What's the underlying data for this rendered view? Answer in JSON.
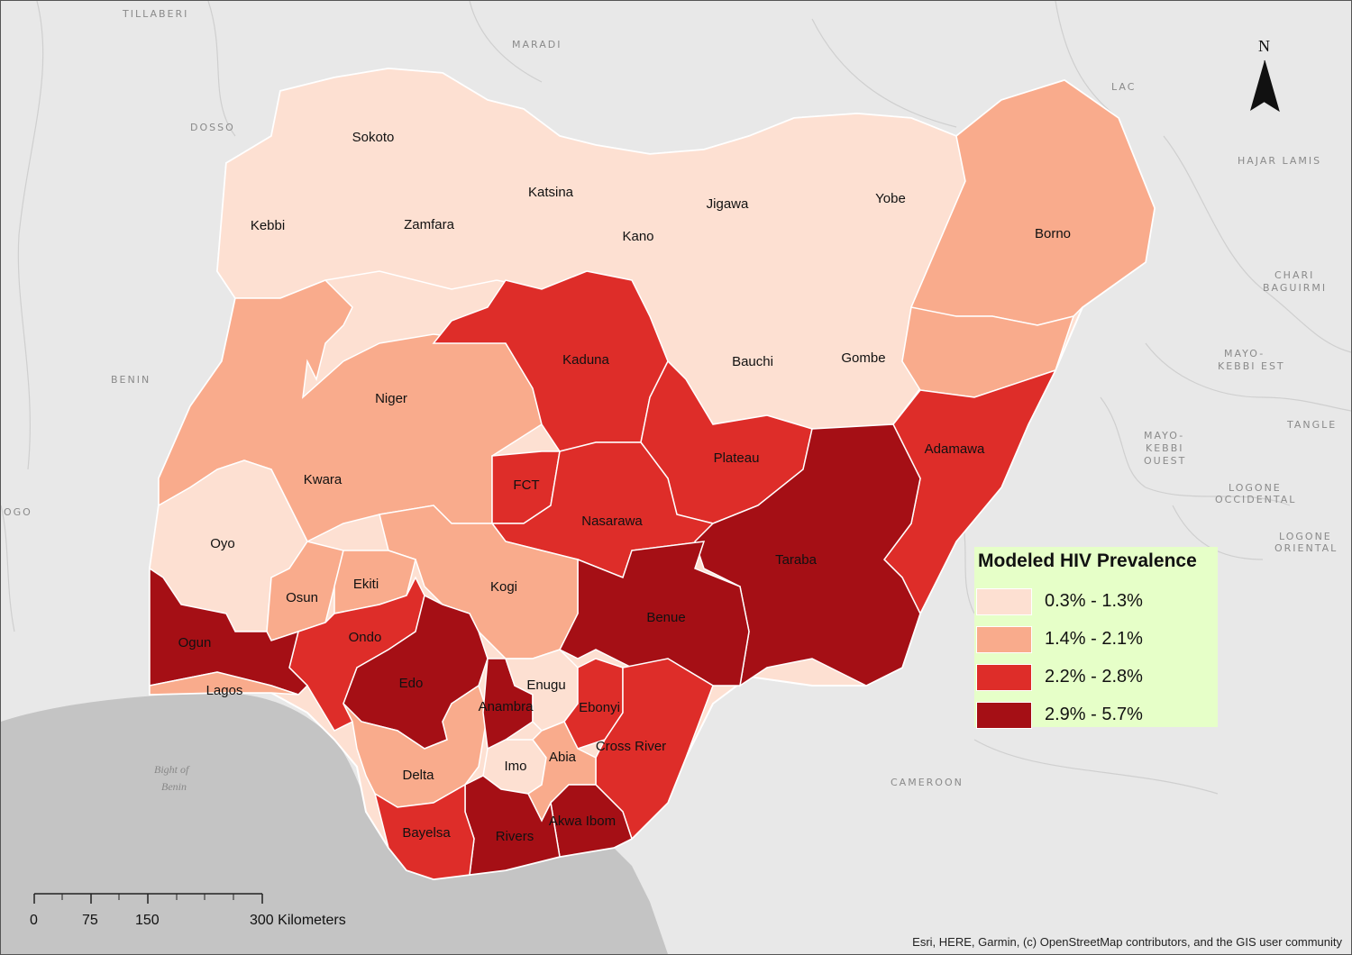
{
  "map": {
    "background_labels": {
      "tillaberi": "TILLABERI",
      "maradi": "MARADI",
      "dosso": "DOSSO",
      "lac": "LAC",
      "hajar_lamis": "HAJAR LAMIS",
      "chari_baguirmi_1": "CHARI",
      "chari_baguirmi_2": "BAGUIRMI",
      "mayo_kebbi_est_1": "MAYO-",
      "mayo_kebbi_est_2": "KEBBI EST",
      "tangle": "TANGLE",
      "mayo_kebbi_ouest_1": "MAYO-",
      "mayo_kebbi_ouest_2": "KEBBI",
      "mayo_kebbi_ouest_3": "OUEST",
      "logone_occ_1": "LOGONE",
      "logone_occ_2": "OCCIDENTAL",
      "logone_or_1": "LOGONE",
      "logone_or_2": "ORIENTAL",
      "benin": "BENIN",
      "togo": "OGO",
      "cameroon": "CAMEROON",
      "bight_1": "Bight of",
      "bight_2": "Benin"
    },
    "states": [
      {
        "name": "Sokoto",
        "class": 1
      },
      {
        "name": "Kebbi",
        "class": 1
      },
      {
        "name": "Zamfara",
        "class": 1
      },
      {
        "name": "Katsina",
        "class": 1
      },
      {
        "name": "Kano",
        "class": 1
      },
      {
        "name": "Jigawa",
        "class": 1
      },
      {
        "name": "Yobe",
        "class": 1
      },
      {
        "name": "Borno",
        "class": 2
      },
      {
        "name": "Bauchi",
        "class": 1
      },
      {
        "name": "Gombe",
        "class": 1
      },
      {
        "name": "Kaduna",
        "class": 3
      },
      {
        "name": "Niger",
        "class": 2
      },
      {
        "name": "Kwara",
        "class": 2
      },
      {
        "name": "Oyo",
        "class": 1
      },
      {
        "name": "FCT",
        "class": 3
      },
      {
        "name": "Nasarawa",
        "class": 3
      },
      {
        "name": "Plateau",
        "class": 3
      },
      {
        "name": "Adamawa",
        "class": 3
      },
      {
        "name": "Taraba",
        "class": 4
      },
      {
        "name": "Benue",
        "class": 4
      },
      {
        "name": "Kogi",
        "class": 2
      },
      {
        "name": "Osun",
        "class": 2
      },
      {
        "name": "Ekiti",
        "class": 2
      },
      {
        "name": "Ondo",
        "class": 3
      },
      {
        "name": "Ogun",
        "class": 4
      },
      {
        "name": "Lagos",
        "class": 2
      },
      {
        "name": "Edo",
        "class": 4
      },
      {
        "name": "Delta",
        "class": 2
      },
      {
        "name": "Anambra",
        "class": 4
      },
      {
        "name": "Enugu",
        "class": 1
      },
      {
        "name": "Ebonyi",
        "class": 3
      },
      {
        "name": "Cross River",
        "class": 3
      },
      {
        "name": "Imo",
        "class": 1
      },
      {
        "name": "Abia",
        "class": 2
      },
      {
        "name": "Akwa Ibom",
        "class": 4
      },
      {
        "name": "Rivers",
        "class": 4
      },
      {
        "name": "Bayelsa",
        "class": 3
      }
    ]
  },
  "legend": {
    "title": "Modeled HIV Prevalence",
    "classes": [
      {
        "label": "0.3% - 1.3%",
        "color": "#fde0d2"
      },
      {
        "label": "1.4% - 2.1%",
        "color": "#f9ab8c"
      },
      {
        "label": "2.2% - 2.8%",
        "color": "#de2d29"
      },
      {
        "label": "2.9% - 5.7%",
        "color": "#a50f15"
      }
    ]
  },
  "north_arrow": {
    "label": "N"
  },
  "scale_bar": {
    "ticks": [
      "0",
      "75",
      "150",
      "300 Kilometers"
    ]
  },
  "attribution": "Esri, HERE, Garmin, (c) OpenStreetMap contributors, and the GIS user community"
}
